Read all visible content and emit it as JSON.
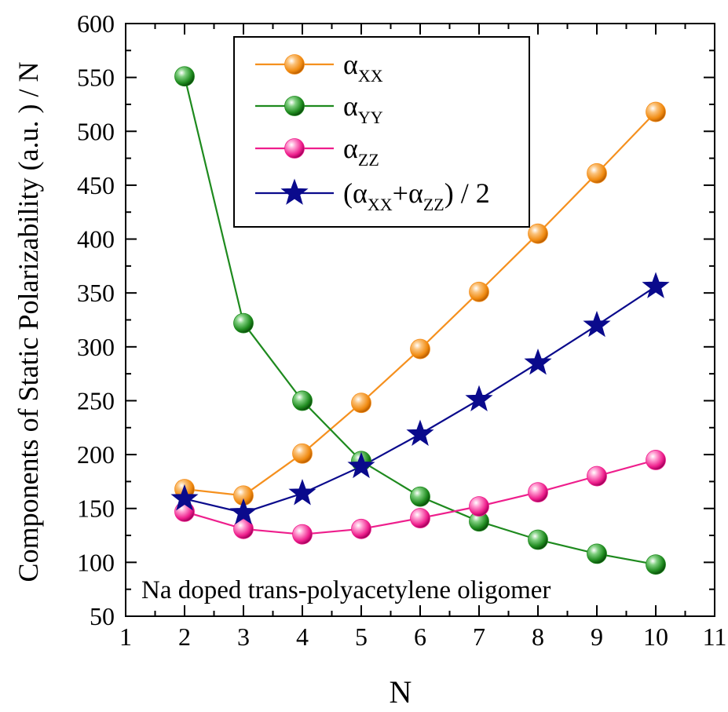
{
  "chart_data": {
    "type": "line",
    "xlabel": "N",
    "ylabel": "Components of Static Polarizability (a.u. ) / N",
    "xlim": [
      1,
      11
    ],
    "ylim": [
      50,
      600
    ],
    "xticks": [
      "1",
      "2",
      "3",
      "4",
      "5",
      "6",
      "7",
      "8",
      "9",
      "10",
      "11"
    ],
    "yticks": [
      "50",
      "100",
      "150",
      "200",
      "250",
      "300",
      "350",
      "400",
      "450",
      "500",
      "550",
      "600"
    ],
    "grid": false,
    "legend_position": "top-center",
    "annotation": "Na  doped trans-polyacetylene oligomer",
    "x": [
      2,
      3,
      4,
      5,
      6,
      7,
      8,
      9,
      10
    ],
    "series": [
      {
        "key": "axx",
        "name": "αXX",
        "legend": {
          "main": "α",
          "sub": "XX"
        },
        "color": "#f5901e",
        "marker": "circle",
        "values": [
          168,
          162,
          201,
          248,
          298,
          351,
          405,
          461,
          518
        ]
      },
      {
        "key": "ayy",
        "name": "αYY",
        "legend": {
          "main": "α",
          "sub": "YY"
        },
        "color": "#1e8a1e",
        "marker": "circle",
        "values": [
          551,
          322,
          250,
          194,
          161,
          138,
          121,
          108,
          98
        ]
      },
      {
        "key": "azz",
        "name": "αZZ",
        "legend": {
          "main": "α",
          "sub": "ZZ"
        },
        "color": "#ee1e8c",
        "marker": "circle",
        "values": [
          147,
          131,
          126,
          131,
          141,
          152,
          165,
          180,
          195
        ]
      },
      {
        "key": "avg",
        "name": "(αXX+αZZ) / 2",
        "legend": {
          "pre": "(α",
          "sub1": "XX",
          "mid": "+α",
          "sub2": "ZZ",
          "post": ") / 2"
        },
        "color": "#0a0a8c",
        "marker": "star",
        "values": [
          159,
          146,
          164,
          189,
          219,
          251,
          285,
          320,
          356
        ]
      }
    ]
  }
}
